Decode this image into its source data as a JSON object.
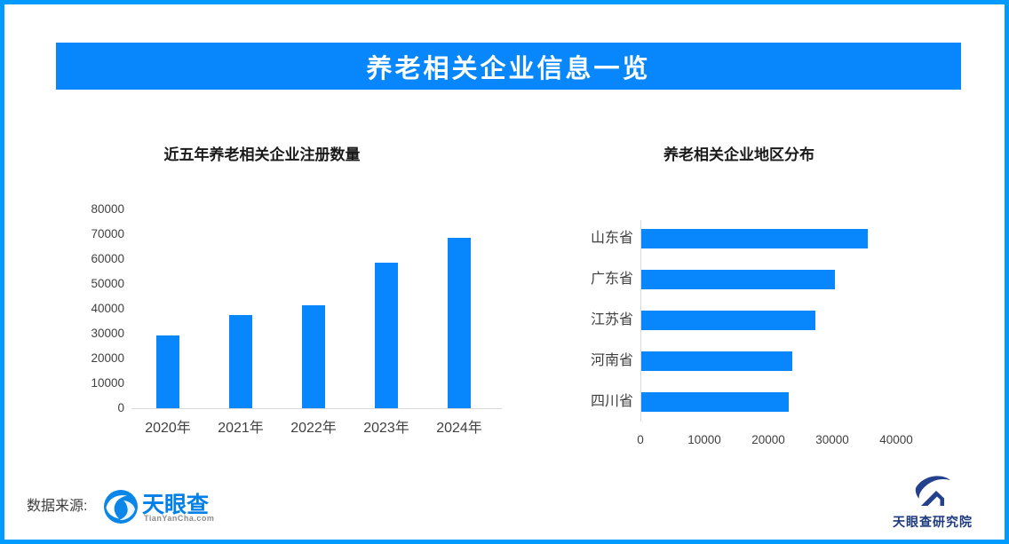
{
  "header": {
    "title": "养老相关企业信息一览"
  },
  "colors": {
    "accent": "#0787FB",
    "page_border": "#009BFC",
    "axis_line": "#D9D9D9",
    "brand_blue": "#0080E8",
    "research_navy": "#24418E"
  },
  "chart_data": [
    {
      "type": "bar",
      "title": "近五年养老相关企业注册数量",
      "categories": [
        "2020年",
        "2021年",
        "2022年",
        "2023年",
        "2024年"
      ],
      "values": [
        29400,
        37500,
        41500,
        58600,
        68600
      ],
      "ylabel": "",
      "xlabel": "",
      "ylim": [
        0,
        80000
      ],
      "yticks": [
        0,
        10000,
        20000,
        30000,
        40000,
        50000,
        60000,
        70000,
        80000
      ],
      "grid": false,
      "legend": false,
      "bar_color": "#0787FB"
    },
    {
      "type": "bar-horizontal",
      "title": "养老相关企业地区分布",
      "categories": [
        "山东省",
        "广东省",
        "江苏省",
        "河南省",
        "四川省"
      ],
      "values": [
        35400,
        30300,
        27200,
        23600,
        23000
      ],
      "ylabel": "",
      "xlabel": "",
      "xlim": [
        0,
        40000
      ],
      "xticks": [
        0,
        10000,
        20000,
        30000,
        40000
      ],
      "grid": false,
      "legend": false,
      "bar_color": "#0787FB"
    }
  ],
  "footer": {
    "source_label": "数据来源:",
    "brand_name": "天眼查",
    "brand_domain": "TianYanCha.com",
    "research_name": "天眼查研究院"
  },
  "icons": {
    "brand_logo": "tianyancha-eye-logo",
    "research_logo": "tianyancha-research-logo"
  }
}
